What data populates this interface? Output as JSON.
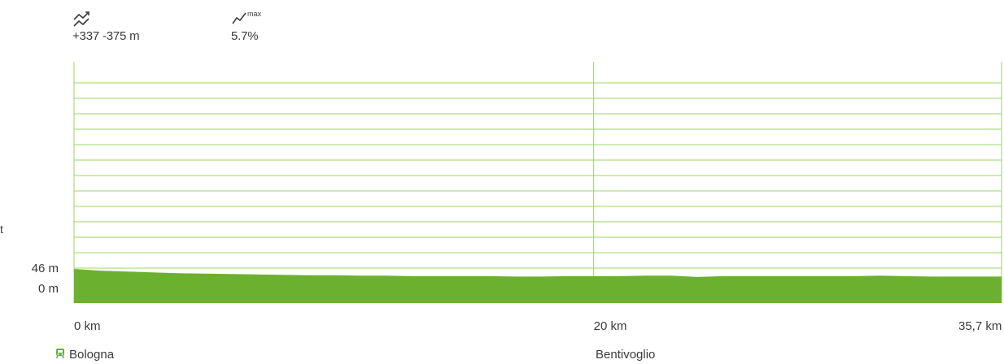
{
  "stats": {
    "updown": "+337 -375 m",
    "max_label": "max",
    "max_grade": "5.7%"
  },
  "side_letter": "t",
  "places": [
    {
      "name": "Bologna",
      "icon": "train-icon"
    },
    {
      "name": "Bentivoglio",
      "icon": ""
    }
  ],
  "colors": {
    "profile": "#6bb12f",
    "grid": "#9cd46a",
    "text": "#3a3a3a"
  },
  "chart_data": {
    "type": "area",
    "y_tick_labels": [
      "46 m",
      "0 m"
    ],
    "x_tick_labels": [
      "0 km",
      "20 km",
      "35,7 km"
    ],
    "x_ticks_km": [
      0,
      20,
      35.7
    ],
    "y_ticks_m": [
      46,
      0
    ],
    "xlim": [
      0,
      35.7
    ],
    "grid": true,
    "profile": {
      "x_km": [
        0,
        1,
        2,
        3,
        4,
        5,
        6,
        7,
        8,
        9,
        10,
        11,
        12,
        13,
        14,
        15,
        16,
        17,
        18,
        19,
        20,
        21,
        22,
        23,
        24,
        25,
        26,
        27,
        28,
        29,
        30,
        31,
        32,
        33,
        34,
        35,
        35.7
      ],
      "elev_m": [
        46,
        42,
        40,
        38,
        36,
        35,
        34,
        33,
        32,
        31,
        31,
        30,
        30,
        29,
        29,
        29,
        29,
        28,
        28,
        29,
        29,
        29,
        30,
        30,
        27,
        29,
        29,
        29,
        29,
        29,
        29,
        30,
        29,
        28,
        28,
        28,
        28
      ]
    }
  }
}
